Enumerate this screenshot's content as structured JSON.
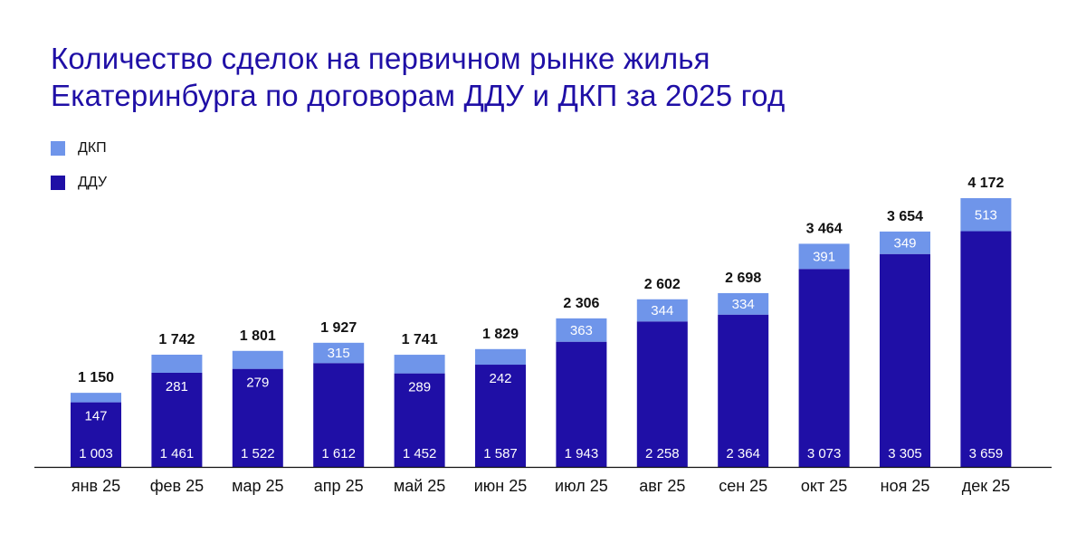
{
  "title": {
    "line1": "Количество сделок на первичном рынке жилья",
    "line2": "Екатеринбурга по договорам ДДУ и ДКП за 2025 год"
  },
  "legend": [
    {
      "label": "ДКП",
      "color": "#6f95ea"
    },
    {
      "label": "ДДУ",
      "color": "#1f0fa6"
    }
  ],
  "chart_data": {
    "type": "bar",
    "stacked": true,
    "categories": [
      "янв 25",
      "фев 25",
      "мар 25",
      "апр 25",
      "май 25",
      "июн 25",
      "июл 25",
      "авг 25",
      "сен 25",
      "окт 25",
      "ноя 25",
      "дек 25"
    ],
    "series": [
      {
        "name": "ДДУ",
        "color": "#1f0fa6",
        "values": [
          1003,
          1461,
          1522,
          1612,
          1452,
          1587,
          1943,
          2258,
          2364,
          3073,
          3305,
          3659
        ],
        "labels": [
          "1 003",
          "1 461",
          "1 522",
          "1 612",
          "1 452",
          "1 587",
          "1 943",
          "2 258",
          "2 364",
          "3 073",
          "3 305",
          "3 659"
        ]
      },
      {
        "name": "ДКП",
        "color": "#6f95ea",
        "values": [
          147,
          281,
          279,
          315,
          289,
          242,
          363,
          344,
          334,
          391,
          349,
          513
        ],
        "labels": [
          "147",
          "281",
          "279",
          "315",
          "289",
          "242",
          "363",
          "344",
          "334",
          "391",
          "349",
          "513"
        ]
      }
    ],
    "totals": [
      "1 150",
      "1 742",
      "1 801",
      "1 927",
      "1 741",
      "1 829",
      "2 306",
      "2 602",
      "2 698",
      "3 464",
      "3 654",
      "4 172"
    ],
    "ylim": [
      0,
      4172
    ],
    "grid": false,
    "legend_position": "top-left"
  }
}
